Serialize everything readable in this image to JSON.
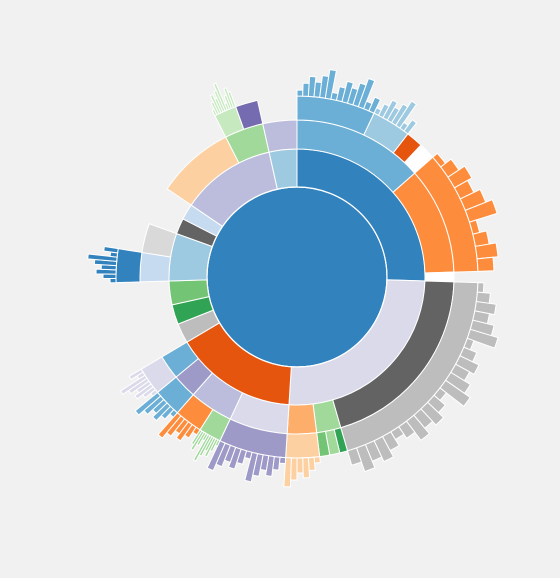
{
  "chart_data": {
    "type": "sunburst",
    "title": "",
    "total": 100,
    "start_angle_deg": 0,
    "root": {
      "value": 100,
      "color": "#3182bd"
    },
    "segments": [
      {
        "level": 1,
        "value": 25.5,
        "color": "#3182bd",
        "children": [
          {
            "level": 2,
            "value": 13.5,
            "color": "#6baed6",
            "children": [
              {
                "level": 3,
                "value": 7.0,
                "color": "#6baed6",
                "fine": 14
              },
              {
                "level": 3,
                "value": 3.5,
                "color": "#9ecae1",
                "fine": 8
              },
              {
                "level": 3,
                "value": 1.5,
                "color": "#e6550d",
                "fine": 0
              },
              {
                "level": 3,
                "value": 1.5,
                "color": "#ffffff",
                "fine": 0
              }
            ]
          },
          {
            "level": 2,
            "value": 11.0,
            "color": "#fd8d3c",
            "children": [
              {
                "level": 3,
                "value": 11.0,
                "color": "#fd8d3c",
                "fine": 10
              }
            ]
          },
          {
            "level": 2,
            "value": 1.0,
            "color": "#ffffff",
            "children": []
          }
        ]
      },
      {
        "level": 1,
        "value": 25.5,
        "color": "#dadaeb",
        "children": [
          {
            "level": 2,
            "value": 20.0,
            "color": "#636363",
            "children": [
              {
                "level": 3,
                "value": 20.0,
                "color": "#bdbdbd",
                "fine": 24
              }
            ]
          },
          {
            "level": 2,
            "value": 2.5,
            "color": "#a1d99b",
            "children": [
              {
                "level": 3,
                "value": 0.7,
                "color": "#31a354",
                "fine": 0
              },
              {
                "level": 3,
                "value": 0.9,
                "color": "#a1d99b",
                "fine": 0
              },
              {
                "level": 3,
                "value": 0.9,
                "color": "#74c476",
                "fine": 0
              }
            ]
          },
          {
            "level": 2,
            "value": 3.0,
            "color": "#fdae6b",
            "children": [
              {
                "level": 3,
                "value": 3.0,
                "color": "#fdd0a2",
                "fine": 6
              }
            ]
          }
        ]
      },
      {
        "level": 1,
        "value": 15.5,
        "color": "#e6550d",
        "children": [
          {
            "level": 2,
            "value": 6.0,
            "color": "#dadaeb",
            "children": [
              {
                "level": 3,
                "value": 6.0,
                "color": "#9e9ac8",
                "fine": 12
              }
            ]
          },
          {
            "level": 2,
            "value": 4.5,
            "color": "#bcbddc",
            "children": [
              {
                "level": 3,
                "value": 2.0,
                "color": "#a1d99b",
                "fine": 10
              },
              {
                "level": 3,
                "value": 2.5,
                "color": "#fd8d3c",
                "fine": 6
              }
            ]
          },
          {
            "level": 2,
            "value": 2.5,
            "color": "#9e9ac8",
            "children": [
              {
                "level": 3,
                "value": 2.5,
                "color": "#6baed6",
                "fine": 6
              }
            ]
          },
          {
            "level": 2,
            "value": 2.5,
            "color": "#6baed6",
            "children": [
              {
                "level": 3,
                "value": 2.5,
                "color": "#dadaeb",
                "fine": 8
              }
            ]
          }
        ]
      },
      {
        "level": 1,
        "value": 2.5,
        "color": "#bdbdbd",
        "children": []
      },
      {
        "level": 1,
        "value": 2.5,
        "color": "#31a354",
        "children": []
      },
      {
        "level": 1,
        "value": 3.0,
        "color": "#74c476",
        "children": []
      },
      {
        "level": 1,
        "value": 6.0,
        "color": "#9ecae1",
        "children": [
          {
            "level": 2,
            "value": 3.0,
            "color": "#c6dbef",
            "children": [
              {
                "level": 3,
                "value": 3.0,
                "color": "#3182bd",
                "fine": 8
              }
            ]
          },
          {
            "level": 2,
            "value": 3.0,
            "color": "#d9d9d9",
            "children": []
          }
        ]
      },
      {
        "level": 1,
        "value": 2.0,
        "color": "#636363",
        "children": []
      },
      {
        "level": 1,
        "value": 2.0,
        "color": "#c6dbef",
        "children": []
      },
      {
        "level": 1,
        "value": 12.0,
        "color": "#bcbddc",
        "children": [
          {
            "level": 2,
            "value": 8.0,
            "color": "#fdd0a2",
            "children": []
          },
          {
            "level": 2,
            "value": 4.0,
            "color": "#a1d99b",
            "children": [
              {
                "level": 3,
                "value": 2.0,
                "color": "#c7e9c0",
                "fine": 10
              },
              {
                "level": 3,
                "value": 2.0,
                "color": "#756bb1",
                "fine": 0
              }
            ]
          }
        ]
      },
      {
        "level": 1,
        "value": 3.5,
        "color": "#9ecae1",
        "children": [
          {
            "level": 2,
            "value": 3.5,
            "color": "#bcbddc",
            "children": []
          }
        ]
      }
    ]
  }
}
